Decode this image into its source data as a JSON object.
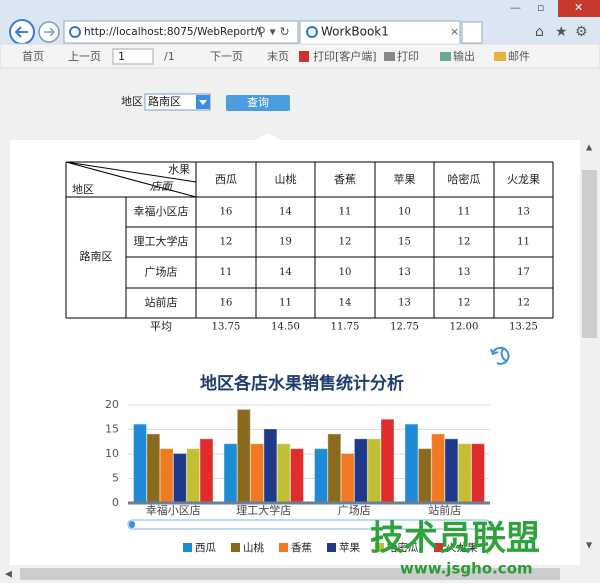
{
  "browser": {
    "url": "http://localhost:8075/WebReport/I",
    "tab": "WorkBook1"
  },
  "toolbar": {
    "first": "首页",
    "prev": "上一页",
    "page": 1,
    "total": "/1",
    "next": "下一页",
    "last": "末页",
    "print_client": "打印[客户端]",
    "print": "打印",
    "export": "输出",
    "mail": "邮件"
  },
  "filter": {
    "label": "地区",
    "value": "路南区",
    "button": "查询"
  },
  "table": {
    "corner": [
      "水果",
      "店面",
      "地区"
    ],
    "columns": [
      "西瓜",
      "山桃",
      "香蕉",
      "苹果",
      "哈密瓜",
      "火龙果"
    ],
    "region": "路南区",
    "rows": [
      {
        "store": "幸福小区店",
        "values": [
          16,
          14,
          11,
          10,
          11,
          13
        ]
      },
      {
        "store": "理工大学店",
        "values": [
          12,
          19,
          12,
          15,
          12,
          11
        ]
      },
      {
        "store": "广场店",
        "values": [
          11,
          14,
          10,
          13,
          13,
          17
        ]
      },
      {
        "store": "站前店",
        "values": [
          16,
          11,
          14,
          13,
          12,
          12
        ]
      }
    ],
    "average_label": "平均",
    "averages": [
      "13.75",
      "14.50",
      "11.75",
      "12.75",
      "12.00",
      "13.25"
    ]
  },
  "chart_data": {
    "type": "bar",
    "title": "地区各店水果销售统计分析",
    "categories": [
      "幸福小区店",
      "理工大学店",
      "广场店",
      "站前店"
    ],
    "series": [
      {
        "name": "西瓜",
        "color": "#1f8ad6",
        "values": [
          16,
          12,
          11,
          16
        ]
      },
      {
        "name": "山桃",
        "color": "#8a6a1c",
        "values": [
          14,
          19,
          14,
          11
        ]
      },
      {
        "name": "香蕉",
        "color": "#f07a22",
        "values": [
          11,
          12,
          10,
          14
        ]
      },
      {
        "name": "苹果",
        "color": "#20388a",
        "values": [
          10,
          15,
          13,
          13
        ]
      },
      {
        "name": "哈密瓜",
        "color": "#c2c032",
        "values": [
          11,
          12,
          13,
          12
        ]
      },
      {
        "name": "火龙果",
        "color": "#e02c2c",
        "values": [
          13,
          11,
          17,
          12
        ]
      }
    ],
    "ylim": [
      0,
      20
    ],
    "yticks": [
      0,
      5,
      10,
      15,
      20
    ],
    "grid": true,
    "legend": "bottom"
  },
  "watermark": {
    "text": "技术员联盟",
    "url": "www.jsgho.com"
  }
}
